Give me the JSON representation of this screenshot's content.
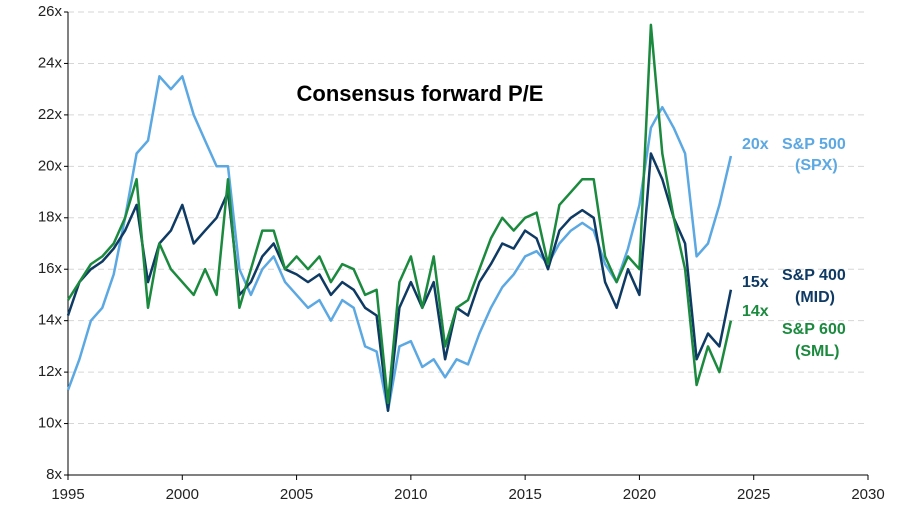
{
  "chart_data": {
    "type": "line",
    "title": "Consensus forward P/E",
    "x": [
      1995,
      1995.5,
      1996,
      1996.5,
      1997,
      1997.5,
      1998,
      1998.5,
      1999,
      1999.5,
      2000,
      2000.5,
      2001,
      2001.5,
      2002,
      2002.5,
      2003,
      2003.5,
      2004,
      2004.5,
      2005,
      2005.5,
      2006,
      2006.5,
      2007,
      2007.5,
      2008,
      2008.5,
      2009,
      2009.5,
      2010,
      2010.5,
      2011,
      2011.5,
      2012,
      2012.5,
      2013,
      2013.5,
      2014,
      2014.5,
      2015,
      2015.5,
      2016,
      2016.5,
      2017,
      2017.5,
      2018,
      2018.5,
      2019,
      2019.5,
      2020,
      2020.5,
      2021,
      2021.5,
      2022,
      2022.5,
      2023,
      2023.5,
      2024
    ],
    "series": [
      {
        "name": "S&P 500",
        "code": "(SPX)",
        "end_label": "20x",
        "color": "#5ba8e2",
        "values": [
          11.3,
          12.5,
          14,
          14.5,
          15.8,
          18,
          20.5,
          21,
          23.5,
          23,
          23.5,
          22,
          21,
          20,
          20,
          16,
          15,
          16,
          16.5,
          15.5,
          15,
          14.5,
          14.8,
          14,
          14.8,
          14.5,
          13,
          12.8,
          10.5,
          13,
          13.2,
          12.2,
          12.5,
          11.8,
          12.5,
          12.3,
          13.5,
          14.5,
          15.3,
          15.8,
          16.5,
          16.7,
          16.2,
          17,
          17.5,
          17.8,
          17.5,
          16.2,
          15.5,
          16.8,
          18.5,
          21.5,
          22.3,
          21.5,
          20.5,
          16.5,
          17,
          18.5,
          20.4
        ]
      },
      {
        "name": "S&P 400",
        "code": "(MID)",
        "end_label": "15x",
        "color": "#0e3a63",
        "values": [
          14.2,
          15.5,
          16,
          16.3,
          16.8,
          17.5,
          18.5,
          15.5,
          17,
          17.5,
          18.5,
          17,
          17.5,
          18,
          19,
          15,
          15.5,
          16.5,
          17,
          16,
          15.8,
          15.5,
          15.8,
          15,
          15.5,
          15.2,
          14.5,
          14.2,
          10.5,
          14.5,
          15.5,
          14.5,
          15.5,
          12.5,
          14.5,
          14.2,
          15.5,
          16.2,
          17,
          16.8,
          17.5,
          17.2,
          16,
          17.5,
          18,
          18.3,
          18,
          15.5,
          14.5,
          16,
          15,
          20.5,
          19.5,
          18,
          17,
          12.5,
          13.5,
          13,
          15.2
        ]
      },
      {
        "name": "S&P 600",
        "code": "(SML)",
        "end_label": "14x",
        "color": "#1b8a3e",
        "values": [
          14.8,
          15.5,
          16.2,
          16.5,
          17,
          18,
          19.5,
          14.5,
          17,
          16,
          15.5,
          15,
          16,
          15,
          19.5,
          14.5,
          16,
          17.5,
          17.5,
          16,
          16.5,
          16,
          16.5,
          15.5,
          16.2,
          16,
          15,
          15.2,
          10.8,
          15.5,
          16.5,
          14.5,
          16.5,
          13,
          14.5,
          14.8,
          16,
          17.2,
          18,
          17.5,
          18,
          18.2,
          16.2,
          18.5,
          19,
          19.5,
          19.5,
          16.5,
          15.5,
          16.5,
          16,
          25.5,
          20.5,
          18,
          16,
          11.5,
          13,
          12,
          14
        ]
      }
    ],
    "xlim": [
      1995,
      2030
    ],
    "xticks": [
      1995,
      2000,
      2005,
      2010,
      2015,
      2020,
      2025,
      2030
    ],
    "ylim": [
      8,
      26
    ],
    "yticks": [
      {
        "value": 8,
        "label": "8x"
      },
      {
        "value": 10,
        "label": "10x"
      },
      {
        "value": 12,
        "label": "12x"
      },
      {
        "value": 14,
        "label": "14x"
      },
      {
        "value": 16,
        "label": "16x"
      },
      {
        "value": 18,
        "label": "18x"
      },
      {
        "value": 20,
        "label": "20x"
      },
      {
        "value": 22,
        "label": "22x"
      },
      {
        "value": 24,
        "label": "24x"
      },
      {
        "value": 26,
        "label": "26x"
      }
    ],
    "grid": true
  }
}
